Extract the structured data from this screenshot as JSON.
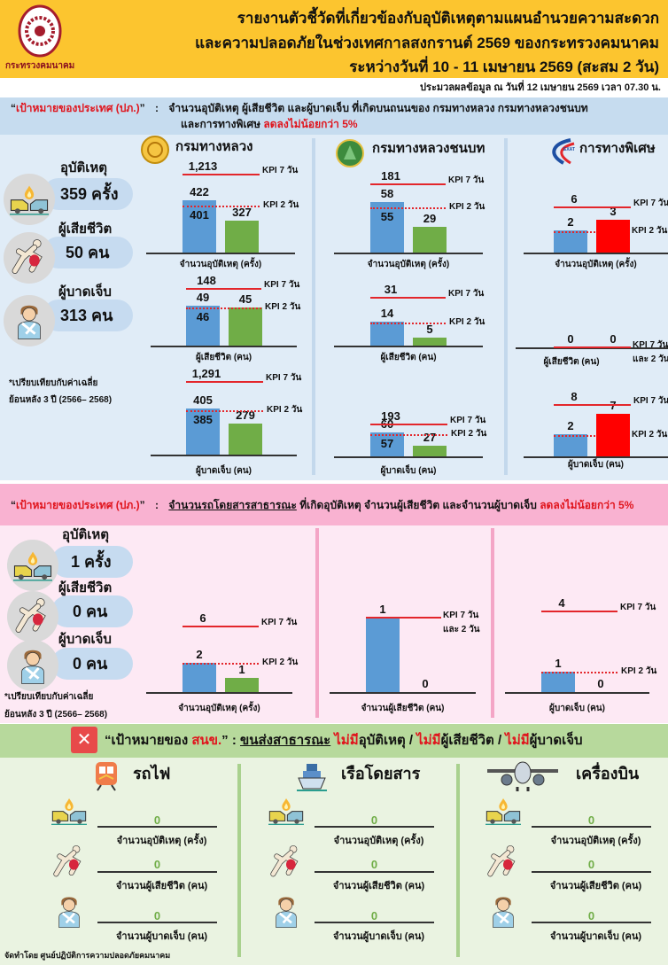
{
  "header": {
    "logo_text": "กระทรวงคมนาคม",
    "title_lines": [
      "รายงานตัวชี้วัดที่เกี่ยวข้องกับอุบัติเหตุตามแผนอำนวยความสะดวก",
      "และความปลอดภัยในช่วงเทศกาลสงกรานต์ 2569 ของกระทรวงคมนาคม",
      "ระหว่างวันที่ 10 - 11 เมษายน 2569 (สะสม 2 วัน)"
    ],
    "processed": "ประมวลผลข้อมูล ณ วันที่ 12 เมษายน 2569 เวลา 07.30 น."
  },
  "kpi_labels": {
    "kpi7": "KPI 7 วัน",
    "kpi2": "KPI 2 วัน",
    "and2": "และ 2 วัน"
  },
  "section1": {
    "goal_open": "“",
    "goal_label": "เป้าหมายของประเทศ (ปภ.)",
    "goal_close": "”",
    "colon": ":",
    "goal_text_1": "จำนวนอุบัติเหตุ ผู้เสียชีวิต และผู้บาดเจ็บ ที่เกิดบนถนนของ กรมทางหลวง กรมทางหลวงชนบท",
    "goal_text_2": "และการทางพิเศษ",
    "goal_target": "ลดลงไม่น้อยกว่า 5%",
    "summary": [
      {
        "title": "อุบัติเหตุ",
        "value": "359 ครั้ง"
      },
      {
        "title": "ผู้เสียชีวิต",
        "value": "50 คน"
      },
      {
        "title": "ผู้บาดเจ็บ",
        "value": "313 คน"
      }
    ],
    "note_1": "*เปรียบเทียบกับค่าเฉลี่ย",
    "note_2": "ย้อนหลัง 3 ปี (2566– 2568)",
    "agencies": [
      {
        "name": "กรมทางหลวง"
      },
      {
        "name": "กรมทางหลวงชนบท"
      },
      {
        "name": "การทางพิเศษ",
        "logo_text": "EXAT"
      }
    ]
  },
  "section2": {
    "goal_open": "“",
    "goal_label": "เป้าหมายของประเทศ (ปภ.)",
    "goal_close": "”",
    "colon": ":",
    "goal_subject": "จำนวนรถโดยสารสาธารณะ",
    "goal_text": "ที่เกิดอุบัติเหตุ จำนวนผู้เสียชีวิต และจำนวนผู้บาดเจ็บ",
    "goal_target": "ลดลงไม่น้อยกว่า 5%",
    "summary": [
      {
        "title": "อุบัติเหตุ",
        "value": "1 ครั้ง"
      },
      {
        "title": "ผู้เสียชีวิต",
        "value": "0 คน"
      },
      {
        "title": "ผู้บาดเจ็บ",
        "value": "0 คน"
      }
    ],
    "note_1": "*เปรียบเทียบกับค่าเฉลี่ย",
    "note_2": "ย้อนหลัง 3 ปี (2566– 2568)"
  },
  "charts": {
    "A1": {
      "avg": "422",
      "kpi2": "401",
      "current": "327",
      "kpi7": "1,213",
      "label": "จำนวนอุบัติเหตุ (ครั้ง)"
    },
    "A2": {
      "avg": "49",
      "kpi2": "46",
      "current": "45",
      "kpi7": "148",
      "label": "ผู้เสียชีวิต (คน)"
    },
    "A3": {
      "avg": "405",
      "kpi2": "385",
      "current": "279",
      "kpi7": "1,291",
      "label": "ผู้บาดเจ็บ (คน)"
    },
    "B1": {
      "avg": "58",
      "kpi2": "55",
      "current": "29",
      "kpi7": "181",
      "label": "จำนวนอุบัติเหตุ (ครั้ง)"
    },
    "B2": {
      "avg": "14",
      "current": "5",
      "kpi7": "31",
      "label": "ผู้เสียชีวิต (คน)"
    },
    "B3": {
      "avg": "60",
      "kpi2": "57",
      "current": "27",
      "kpi7": "193",
      "label": "ผู้บาดเจ็บ (คน)"
    },
    "C1": {
      "avg": "2",
      "current": "3",
      "kpi7": "6",
      "label": "จำนวนอุบัติเหตุ (ครั้ง)"
    },
    "C2": {
      "avg": "0",
      "current": "0",
      "label": "ผู้เสียชีวิต (คน)"
    },
    "C3": {
      "avg": "2",
      "current": "7",
      "kpi7": "8",
      "label": "ผู้บาดเจ็บ (คน)"
    },
    "D1": {
      "avg": "2",
      "current": "1",
      "kpi7": "6",
      "label": "จำนวนอุบัติเหตุ (ครั้ง)"
    },
    "D2": {
      "avg": "1",
      "current": "0",
      "label": "จำนวนผู้เสียชีวิต (คน)"
    },
    "D3": {
      "avg": "1",
      "current": "0",
      "kpi7": "4",
      "label": "ผู้บาดเจ็บ (คน)"
    }
  },
  "colors": {
    "avg_bar": "#5b9bd5",
    "current_ok": "#70ad47",
    "current_bad": "#ff0000",
    "kpi": "#e3262b"
  },
  "section3": {
    "goal_open": "“เป้าหมายของ ",
    "goal_org": "สนข.",
    "goal_close": "” :",
    "goal_subject": "ขนส่งสาธารณะ",
    "none": "ไม่มี",
    "item_accident": "อุบัติเหตุ /",
    "item_death": "ผู้เสียชีวิต /",
    "item_injury": "ผู้บาดเจ็บ",
    "modes": [
      {
        "name": "รถไฟ",
        "rows": [
          {
            "value": "0",
            "label": "จำนวนอุบัติเหตุ (ครั้ง)"
          },
          {
            "value": "0",
            "label": "จำนวนผู้เสียชีวิต (คน)"
          },
          {
            "value": "0",
            "label": "จำนวนผู้บาดเจ็บ (คน)"
          }
        ]
      },
      {
        "name": "เรือโดยสาร",
        "rows": [
          {
            "value": "0",
            "label": "จำนวนอุบัติเหตุ (ครั้ง)"
          },
          {
            "value": "0",
            "label": "จำนวนผู้เสียชีวิต (คน)"
          },
          {
            "value": "0",
            "label": "จำนวนผู้บาดเจ็บ (คน)"
          }
        ]
      },
      {
        "name": "เครื่องบิน",
        "rows": [
          {
            "value": "0",
            "label": "จำนวนอุบัติเหตุ (ครั้ง)"
          },
          {
            "value": "0",
            "label": "จำนวนผู้เสียชีวิต (คน)"
          },
          {
            "value": "0",
            "label": "จำนวนผู้บาดเจ็บ (คน)"
          }
        ]
      }
    ],
    "footer": "จัดทำโดย ศูนย์ปฏิบัติการความปลอดภัยคมนาคม"
  }
}
